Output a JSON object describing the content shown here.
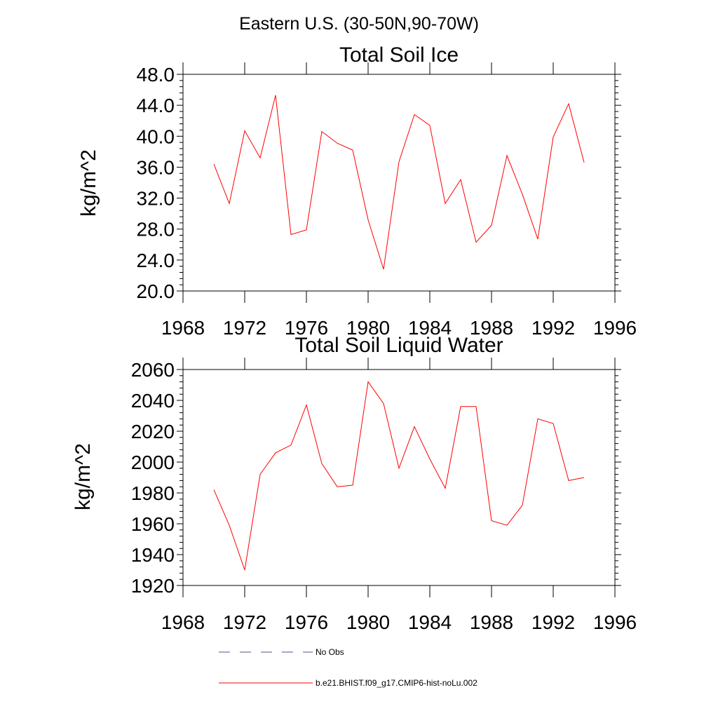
{
  "figure_title": "Eastern U.S. (30-50N,90-70W)",
  "chart_data": [
    {
      "type": "line",
      "title": "Total Soil Ice",
      "xlabel": "",
      "ylabel": "kg/m^2",
      "xlim": [
        1968,
        1996
      ],
      "ylim": [
        20.0,
        48.0
      ],
      "x_ticks": [
        "1968",
        "1972",
        "1976",
        "1980",
        "1984",
        "1988",
        "1992",
        "1996"
      ],
      "y_ticks": [
        "20.0",
        "24.0",
        "28.0",
        "32.0",
        "36.0",
        "40.0",
        "44.0",
        "48.0"
      ],
      "x": [
        1970,
        1971,
        1972,
        1973,
        1974,
        1975,
        1976,
        1977,
        1978,
        1979,
        1980,
        1981,
        1982,
        1983,
        1984,
        1985,
        1986,
        1987,
        1988,
        1989,
        1990,
        1991,
        1992,
        1993,
        1994
      ],
      "series": [
        {
          "name": "b.e21.BHIST.f09_g17.CMIP6-hist-noLu.002",
          "color": "#ff0000",
          "values": [
            36.4,
            31.3,
            40.7,
            37.2,
            45.3,
            27.3,
            27.9,
            40.6,
            39.1,
            38.2,
            29.2,
            22.8,
            36.7,
            42.8,
            41.4,
            31.3,
            34.4,
            26.3,
            28.5,
            37.5,
            32.5,
            26.7,
            39.9,
            44.2,
            36.6
          ]
        }
      ]
    },
    {
      "type": "line",
      "title": "Total Soil Liquid Water",
      "xlabel": "",
      "ylabel": "kg/m^2",
      "xlim": [
        1968,
        1996
      ],
      "ylim": [
        1920,
        2060
      ],
      "x_ticks": [
        "1968",
        "1972",
        "1976",
        "1980",
        "1984",
        "1988",
        "1992",
        "1996"
      ],
      "y_ticks": [
        "1920",
        "1940",
        "1960",
        "1980",
        "2000",
        "2020",
        "2040",
        "2060"
      ],
      "x": [
        1970,
        1971,
        1972,
        1973,
        1974,
        1975,
        1976,
        1977,
        1978,
        1979,
        1980,
        1981,
        1982,
        1983,
        1984,
        1985,
        1986,
        1987,
        1988,
        1989,
        1990,
        1991,
        1992,
        1993,
        1994
      ],
      "series": [
        {
          "name": "b.e21.BHIST.f09_g17.CMIP6-hist-noLu.002",
          "color": "#ff0000",
          "values": [
            1982,
            1959,
            1930,
            1992,
            2006,
            2011,
            2037,
            1999,
            1984,
            1985,
            2052,
            2038,
            1996,
            2023,
            2002,
            1983,
            2036,
            2036,
            1962,
            1959,
            1972,
            2028,
            2025,
            1988,
            1990
          ]
        }
      ]
    }
  ],
  "legend": {
    "placement": "bottom",
    "items": [
      {
        "label": "No Obs",
        "style": "dashed",
        "color": "#4a5a8a"
      },
      {
        "label": "b.e21.BHIST.f09_g17.CMIP6-hist-noLu.002",
        "style": "solid",
        "color": "#ff0000"
      }
    ]
  }
}
